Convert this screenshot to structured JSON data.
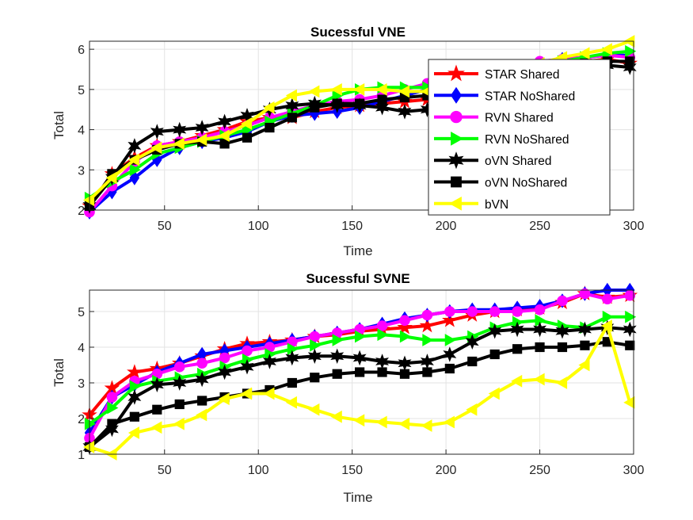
{
  "chart_data": [
    {
      "type": "line",
      "title": "Sucessful VNE",
      "xlabel": "Time",
      "ylabel": "Total",
      "xlim": [
        10,
        300
      ],
      "ylim": [
        2,
        6.2
      ],
      "xticks": [
        50,
        100,
        150,
        200,
        250,
        300
      ],
      "yticks": [
        2,
        3,
        4,
        5,
        6
      ],
      "grid": true,
      "legend": "top-right",
      "x": [
        10,
        22,
        34,
        46,
        58,
        70,
        82,
        94,
        106,
        118,
        130,
        142,
        154,
        166,
        178,
        190,
        202,
        214,
        226,
        238,
        250,
        262,
        274,
        286,
        298
      ],
      "series": [
        {
          "name": "STAR Shared",
          "color": "#ff0000",
          "marker": "star",
          "values": [
            2.1,
            2.9,
            3.3,
            3.6,
            3.7,
            3.85,
            4.0,
            4.2,
            4.3,
            4.3,
            4.45,
            4.55,
            4.6,
            4.65,
            4.7,
            4.75,
            4.9,
            5.0,
            5.2,
            5.4,
            5.5,
            5.6,
            5.7,
            5.75,
            5.65
          ]
        },
        {
          "name": "STAR NoShared",
          "color": "#0000ff",
          "marker": "diamond",
          "values": [
            1.95,
            2.45,
            2.8,
            3.25,
            3.55,
            3.7,
            3.8,
            3.95,
            4.2,
            4.35,
            4.4,
            4.45,
            4.55,
            4.7,
            4.85,
            5.0,
            5.2,
            5.35,
            5.45,
            5.55,
            5.65,
            5.75,
            5.8,
            5.85,
            5.85
          ]
        },
        {
          "name": "RVN Shared",
          "color": "#ff00ff",
          "marker": "circle",
          "values": [
            1.95,
            2.6,
            3.2,
            3.6,
            3.7,
            3.8,
            3.95,
            4.1,
            4.3,
            4.45,
            4.6,
            4.7,
            4.75,
            4.85,
            5.0,
            5.15,
            5.3,
            5.4,
            5.5,
            5.6,
            5.7,
            5.75,
            5.8,
            5.85,
            5.8
          ]
        },
        {
          "name": "RVN NoShared",
          "color": "#00ff00",
          "marker": "triangle-right",
          "values": [
            2.3,
            2.7,
            3.0,
            3.4,
            3.55,
            3.7,
            3.85,
            4.0,
            4.2,
            4.4,
            4.6,
            4.85,
            5.0,
            5.05,
            5.05,
            5.05,
            5.2,
            5.3,
            5.4,
            5.5,
            5.6,
            5.7,
            5.8,
            5.9,
            5.95
          ]
        },
        {
          "name": "oVN Shared",
          "color": "#000000",
          "marker": "hexagram",
          "values": [
            2.1,
            2.8,
            3.6,
            3.95,
            4.0,
            4.05,
            4.2,
            4.35,
            4.5,
            4.6,
            4.65,
            4.6,
            4.6,
            4.55,
            4.45,
            4.5,
            4.65,
            4.85,
            5.0,
            5.15,
            5.3,
            5.45,
            5.55,
            5.6,
            5.55
          ]
        },
        {
          "name": "oVN NoShared",
          "color": "#000000",
          "marker": "square",
          "values": [
            2.1,
            2.9,
            3.25,
            3.5,
            3.65,
            3.7,
            3.65,
            3.8,
            4.05,
            4.3,
            4.55,
            4.65,
            4.65,
            4.75,
            4.8,
            4.85,
            4.95,
            5.05,
            5.2,
            5.35,
            5.45,
            5.55,
            5.65,
            5.7,
            5.7
          ]
        },
        {
          "name": "bVN",
          "color": "#ffff00",
          "marker": "triangle-left",
          "values": [
            2.25,
            2.8,
            3.25,
            3.55,
            3.65,
            3.75,
            3.85,
            4.15,
            4.55,
            4.85,
            4.95,
            5.0,
            5.0,
            5.0,
            4.95,
            4.95,
            5.1,
            5.25,
            5.4,
            5.55,
            5.65,
            5.8,
            5.9,
            6.0,
            6.2
          ]
        }
      ]
    },
    {
      "type": "line",
      "title": "Sucessful SVNE",
      "xlabel": "Time",
      "ylabel": "Total",
      "xlim": [
        10,
        300
      ],
      "ylim": [
        1,
        5.6
      ],
      "xticks": [
        50,
        100,
        150,
        200,
        250,
        300
      ],
      "yticks": [
        1,
        2,
        3,
        4,
        5
      ],
      "grid": true,
      "x": [
        10,
        22,
        34,
        46,
        58,
        70,
        82,
        94,
        106,
        118,
        130,
        142,
        154,
        166,
        178,
        190,
        202,
        214,
        226,
        238,
        250,
        262,
        274,
        286,
        298
      ],
      "series": [
        {
          "name": "STAR Shared",
          "color": "#ff0000",
          "marker": "star",
          "values": [
            2.1,
            2.85,
            3.3,
            3.4,
            3.55,
            3.75,
            3.95,
            4.1,
            4.15,
            4.2,
            4.3,
            4.35,
            4.45,
            4.5,
            4.55,
            4.6,
            4.75,
            4.9,
            5.0,
            5.05,
            5.1,
            5.25,
            5.5,
            5.4,
            5.45
          ]
        },
        {
          "name": "STAR NoShared",
          "color": "#0000ff",
          "marker": "diamond",
          "values": [
            1.6,
            2.6,
            2.95,
            3.3,
            3.55,
            3.8,
            3.9,
            4.0,
            4.1,
            4.2,
            4.3,
            4.4,
            4.5,
            4.65,
            4.8,
            4.9,
            5.0,
            5.05,
            5.05,
            5.1,
            5.15,
            5.3,
            5.5,
            5.6,
            5.6
          ]
        },
        {
          "name": "RVN Shared",
          "color": "#ff00ff",
          "marker": "circle",
          "values": [
            1.45,
            2.6,
            3.05,
            3.25,
            3.45,
            3.55,
            3.7,
            3.9,
            4.0,
            4.15,
            4.3,
            4.4,
            4.5,
            4.6,
            4.75,
            4.9,
            5.0,
            5.0,
            5.0,
            5.0,
            5.05,
            5.3,
            5.5,
            5.35,
            5.45
          ]
        },
        {
          "name": "RVN NoShared",
          "color": "#00ff00",
          "marker": "triangle-right",
          "values": [
            1.85,
            2.3,
            2.9,
            3.05,
            3.15,
            3.25,
            3.45,
            3.65,
            3.8,
            3.95,
            4.05,
            4.2,
            4.3,
            4.35,
            4.3,
            4.2,
            4.2,
            4.3,
            4.55,
            4.7,
            4.75,
            4.6,
            4.55,
            4.85,
            4.85
          ]
        },
        {
          "name": "oVN Shared",
          "color": "#000000",
          "marker": "hexagram",
          "values": [
            1.2,
            1.7,
            2.6,
            2.95,
            3.0,
            3.1,
            3.3,
            3.45,
            3.6,
            3.7,
            3.75,
            3.75,
            3.7,
            3.6,
            3.55,
            3.6,
            3.8,
            4.15,
            4.45,
            4.5,
            4.5,
            4.45,
            4.5,
            4.55,
            4.5
          ]
        },
        {
          "name": "oVN NoShared",
          "color": "#000000",
          "marker": "square",
          "values": [
            1.2,
            1.85,
            2.05,
            2.25,
            2.4,
            2.5,
            2.6,
            2.7,
            2.8,
            3.0,
            3.15,
            3.25,
            3.3,
            3.3,
            3.25,
            3.3,
            3.4,
            3.6,
            3.8,
            3.95,
            4.0,
            4.0,
            4.05,
            4.15,
            4.05
          ]
        },
        {
          "name": "bVN",
          "color": "#ffff00",
          "marker": "triangle-left",
          "values": [
            1.2,
            1.0,
            1.6,
            1.75,
            1.85,
            2.1,
            2.55,
            2.7,
            2.7,
            2.45,
            2.25,
            2.05,
            1.95,
            1.9,
            1.85,
            1.8,
            1.9,
            2.25,
            2.7,
            3.05,
            3.1,
            3.0,
            3.5,
            4.6,
            2.45
          ]
        }
      ]
    }
  ]
}
